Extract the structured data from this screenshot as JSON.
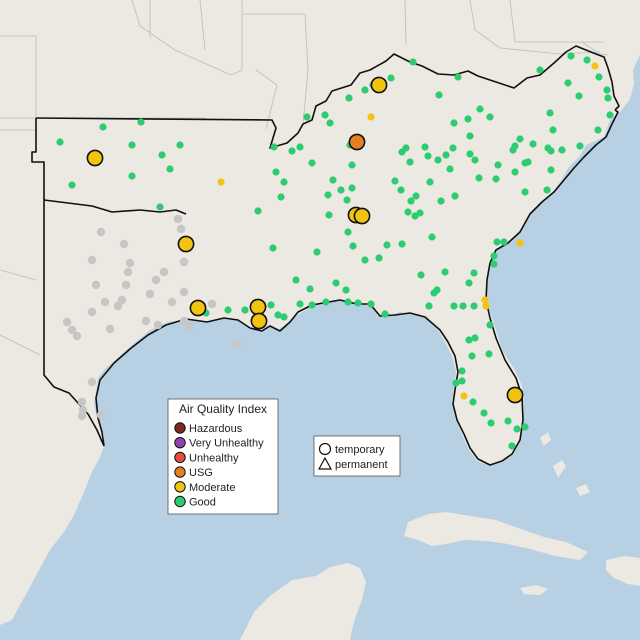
{
  "legend": {
    "title": "Air Quality Index",
    "categories": [
      {
        "label": "Hazardous",
        "color": "#7e2a24"
      },
      {
        "label": "Very Unhealthy",
        "color": "#8e44ad"
      },
      {
        "label": "Unhealthy",
        "color": "#e74c3c"
      },
      {
        "label": "USG",
        "color": "#e67e22"
      },
      {
        "label": "Moderate",
        "color": "#f1c40f"
      },
      {
        "label": "Good",
        "color": "#2ecc71"
      }
    ]
  },
  "shape_legend": {
    "temporary": "temporary",
    "permanent": "permanent"
  },
  "colors": {
    "water": "#b8d0e3",
    "land": "#ece8e2",
    "border": "#111111",
    "inactive": "#c6c6c6"
  },
  "stations": {
    "good": [
      [
        60,
        142
      ],
      [
        103,
        127
      ],
      [
        132,
        145
      ],
      [
        141,
        122
      ],
      [
        162,
        155
      ],
      [
        170,
        169
      ],
      [
        180,
        145
      ],
      [
        72,
        185
      ],
      [
        132,
        176
      ],
      [
        160,
        207
      ],
      [
        274,
        147
      ],
      [
        276,
        172
      ],
      [
        284,
        182
      ],
      [
        281,
        197
      ],
      [
        258,
        211
      ],
      [
        273,
        248
      ],
      [
        292,
        151
      ],
      [
        300,
        147
      ],
      [
        312,
        163
      ],
      [
        352,
        165
      ],
      [
        341,
        190
      ],
      [
        352,
        188
      ],
      [
        347,
        200
      ],
      [
        328,
        195
      ],
      [
        329,
        215
      ],
      [
        348,
        232
      ],
      [
        353,
        246
      ],
      [
        365,
        260
      ],
      [
        379,
        258
      ],
      [
        387,
        245
      ],
      [
        358,
        220
      ],
      [
        346,
        290
      ],
      [
        317,
        252
      ],
      [
        296,
        280
      ],
      [
        310,
        289
      ],
      [
        336,
        283
      ],
      [
        300,
        304
      ],
      [
        312,
        305
      ],
      [
        326,
        302
      ],
      [
        348,
        302
      ],
      [
        358,
        303
      ],
      [
        371,
        304
      ],
      [
        385,
        314
      ],
      [
        271,
        305
      ],
      [
        278,
        315
      ],
      [
        284,
        317
      ],
      [
        262,
        320
      ],
      [
        228,
        310
      ],
      [
        206,
        313
      ],
      [
        307,
        117
      ],
      [
        325,
        115
      ],
      [
        349,
        98
      ],
      [
        365,
        90
      ],
      [
        373,
        85
      ],
      [
        391,
        78
      ],
      [
        413,
        62
      ],
      [
        439,
        95
      ],
      [
        458,
        77
      ],
      [
        454,
        123
      ],
      [
        468,
        119
      ],
      [
        470,
        136
      ],
      [
        475,
        160
      ],
      [
        450,
        169
      ],
      [
        430,
        182
      ],
      [
        395,
        181
      ],
      [
        402,
        152
      ],
      [
        406,
        148
      ],
      [
        410,
        162
      ],
      [
        425,
        147
      ],
      [
        428,
        156
      ],
      [
        438,
        160
      ],
      [
        446,
        155
      ],
      [
        453,
        148
      ],
      [
        470,
        154
      ],
      [
        479,
        178
      ],
      [
        496,
        179
      ],
      [
        498,
        165
      ],
      [
        513,
        150
      ],
      [
        515,
        146
      ],
      [
        515,
        172
      ],
      [
        525,
        163
      ],
      [
        528,
        162
      ],
      [
        533,
        144
      ],
      [
        548,
        148
      ],
      [
        551,
        151
      ],
      [
        562,
        150
      ],
      [
        580,
        146
      ],
      [
        551,
        170
      ],
      [
        441,
        201
      ],
      [
        455,
        196
      ],
      [
        416,
        196
      ],
      [
        408,
        212
      ],
      [
        420,
        213
      ],
      [
        415,
        216
      ],
      [
        411,
        201
      ],
      [
        402,
        244
      ],
      [
        432,
        237
      ],
      [
        445,
        272
      ],
      [
        421,
        275
      ],
      [
        434,
        293
      ],
      [
        429,
        306
      ],
      [
        437,
        290
      ],
      [
        454,
        306
      ],
      [
        463,
        306
      ],
      [
        474,
        306
      ],
      [
        490,
        325
      ],
      [
        475,
        338
      ],
      [
        469,
        340
      ],
      [
        489,
        354
      ],
      [
        472,
        356
      ],
      [
        462,
        371
      ],
      [
        456,
        383
      ],
      [
        462,
        381
      ],
      [
        473,
        402
      ],
      [
        484,
        413
      ],
      [
        491,
        423
      ],
      [
        508,
        421
      ],
      [
        512,
        446
      ],
      [
        525,
        427
      ],
      [
        517,
        429
      ],
      [
        494,
        256
      ],
      [
        504,
        242
      ],
      [
        525,
        192
      ],
      [
        547,
        190
      ],
      [
        550,
        113
      ],
      [
        568,
        83
      ],
      [
        571,
        56
      ],
      [
        587,
        60
      ],
      [
        599,
        77
      ],
      [
        607,
        90
      ],
      [
        579,
        96
      ],
      [
        608,
        98
      ],
      [
        610,
        115
      ],
      [
        598,
        130
      ],
      [
        553,
        130
      ],
      [
        520,
        139
      ],
      [
        490,
        117
      ],
      [
        480,
        109
      ],
      [
        540,
        70
      ],
      [
        497,
        242
      ],
      [
        494,
        264
      ],
      [
        474,
        273
      ],
      [
        469,
        283
      ],
      [
        245,
        310
      ],
      [
        401,
        190
      ],
      [
        330,
        123
      ],
      [
        350,
        145
      ],
      [
        333,
        180
      ]
    ],
    "moderate_small": [
      [
        221,
        182
      ],
      [
        371,
        117
      ],
      [
        595,
        66
      ],
      [
        485,
        300
      ],
      [
        486,
        306
      ],
      [
        464,
        396
      ],
      [
        520,
        243
      ]
    ],
    "moderate_large": [
      [
        95,
        158
      ],
      [
        186,
        244
      ],
      [
        198,
        308
      ],
      [
        258,
        307
      ],
      [
        259,
        321
      ],
      [
        356,
        215
      ],
      [
        362,
        216
      ],
      [
        379,
        85
      ],
      [
        515,
        395
      ]
    ],
    "usg_large": [
      [
        357,
        142
      ]
    ],
    "inactive": [
      [
        101,
        232
      ],
      [
        92,
        260
      ],
      [
        96,
        285
      ],
      [
        124,
        244
      ],
      [
        130,
        263
      ],
      [
        156,
        280
      ],
      [
        146,
        321
      ],
      [
        158,
        325
      ],
      [
        184,
        321
      ],
      [
        164,
        272
      ],
      [
        126,
        285
      ],
      [
        72,
        330
      ],
      [
        77,
        336
      ],
      [
        67,
        322
      ],
      [
        92,
        312
      ],
      [
        105,
        302
      ],
      [
        110,
        329
      ],
      [
        184,
        292
      ],
      [
        92,
        382
      ],
      [
        101,
        415
      ],
      [
        82,
        402
      ],
      [
        83,
        410
      ],
      [
        82,
        416
      ],
      [
        178,
        219
      ],
      [
        181,
        229
      ],
      [
        184,
        262
      ],
      [
        189,
        326
      ],
      [
        150,
        294
      ],
      [
        212,
        304
      ],
      [
        237,
        344
      ],
      [
        122,
        300
      ],
      [
        172,
        302
      ],
      [
        118,
        306
      ],
      [
        128,
        272
      ]
    ]
  }
}
